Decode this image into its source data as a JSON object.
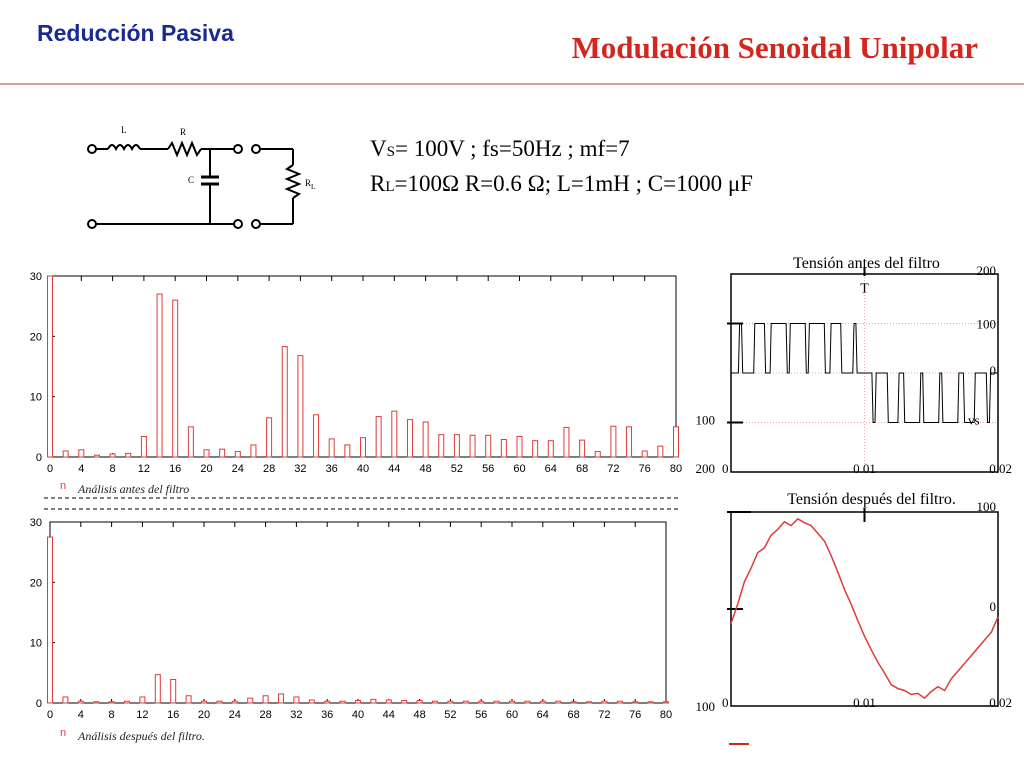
{
  "header": {
    "section_label": "Reducción Pasiva",
    "title": "Modulación Senoidal Unipolar",
    "accent_color": "#d2261e",
    "section_color": "#1b2a8f"
  },
  "circuit": {
    "labels": {
      "L": "L",
      "R": "R",
      "C": "C",
      "RL": "R",
      "RL_sub": "L"
    }
  },
  "params": {
    "line1": {
      "p1_main": "V",
      "p1_sub": "S",
      "p1_rest": "= 100V ;  fs=50Hz ;  mf=7"
    },
    "line2": {
      "p2_main": "R",
      "p2_sub": "L",
      "p2_rest": "=100Ω  R=0.6 Ω;  L=1mH ;  C=1000 μF"
    }
  },
  "chart_data": [
    {
      "type": "bar",
      "title": "Análisis antes del filtro",
      "legend_marker": "n",
      "ylim": [
        0,
        30
      ],
      "yticks": [
        "0",
        "10",
        "20",
        "30"
      ],
      "xlim": [
        0,
        80
      ],
      "xticks": [
        "0",
        "4",
        "8",
        "12",
        "16",
        "20",
        "24",
        "28",
        "32",
        "36",
        "40",
        "44",
        "48",
        "52",
        "56",
        "60",
        "64",
        "68",
        "72",
        "76",
        "80"
      ],
      "bar_color": "#e03a3a",
      "bars": [
        {
          "x": 0,
          "y": 30
        },
        {
          "x": 2,
          "y": 1
        },
        {
          "x": 4,
          "y": 1.2
        },
        {
          "x": 6,
          "y": 0.3
        },
        {
          "x": 8,
          "y": 0.5
        },
        {
          "x": 10,
          "y": 0.6
        },
        {
          "x": 12,
          "y": 3.4
        },
        {
          "x": 14,
          "y": 27
        },
        {
          "x": 16,
          "y": 26
        },
        {
          "x": 18,
          "y": 5
        },
        {
          "x": 20,
          "y": 1.2
        },
        {
          "x": 22,
          "y": 1.3
        },
        {
          "x": 24,
          "y": 0.9
        },
        {
          "x": 26,
          "y": 2
        },
        {
          "x": 28,
          "y": 6.5
        },
        {
          "x": 30,
          "y": 18.3
        },
        {
          "x": 32,
          "y": 16.8
        },
        {
          "x": 34,
          "y": 7
        },
        {
          "x": 36,
          "y": 3
        },
        {
          "x": 38,
          "y": 2
        },
        {
          "x": 40,
          "y": 3.2
        },
        {
          "x": 42,
          "y": 6.7
        },
        {
          "x": 44,
          "y": 7.6
        },
        {
          "x": 46,
          "y": 6.2
        },
        {
          "x": 48,
          "y": 5.8
        },
        {
          "x": 50,
          "y": 3.7
        },
        {
          "x": 52,
          "y": 3.7
        },
        {
          "x": 54,
          "y": 3.6
        },
        {
          "x": 56,
          "y": 3.6
        },
        {
          "x": 58,
          "y": 2.9
        },
        {
          "x": 60,
          "y": 3.4
        },
        {
          "x": 62,
          "y": 2.7
        },
        {
          "x": 64,
          "y": 2.7
        },
        {
          "x": 66,
          "y": 4.9
        },
        {
          "x": 68,
          "y": 2.8
        },
        {
          "x": 70,
          "y": 0.9
        },
        {
          "x": 72,
          "y": 5.1
        },
        {
          "x": 74,
          "y": 5
        },
        {
          "x": 76,
          "y": 1
        },
        {
          "x": 78,
          "y": 1.8
        },
        {
          "x": 80,
          "y": 5
        }
      ]
    },
    {
      "type": "bar",
      "title": "Análisis después del filtro.",
      "legend_marker": "n",
      "ylim": [
        0,
        30
      ],
      "yticks": [
        "0",
        "10",
        "20",
        "30"
      ],
      "xlim": [
        0,
        80
      ],
      "xticks": [
        "0",
        "4",
        "8",
        "12",
        "16",
        "20",
        "24",
        "28",
        "32",
        "36",
        "40",
        "44",
        "48",
        "52",
        "56",
        "60",
        "64",
        "68",
        "72",
        "76",
        "80"
      ],
      "bar_color": "#e03a3a",
      "bars": [
        {
          "x": 0,
          "y": 27.5
        },
        {
          "x": 2,
          "y": 1
        },
        {
          "x": 4,
          "y": 0.3
        },
        {
          "x": 6,
          "y": 0.2
        },
        {
          "x": 8,
          "y": 0.2
        },
        {
          "x": 10,
          "y": 0.3
        },
        {
          "x": 12,
          "y": 1
        },
        {
          "x": 14,
          "y": 4.7
        },
        {
          "x": 16,
          "y": 3.9
        },
        {
          "x": 18,
          "y": 1.2
        },
        {
          "x": 20,
          "y": 0.3
        },
        {
          "x": 22,
          "y": 0.3
        },
        {
          "x": 24,
          "y": 0.3
        },
        {
          "x": 26,
          "y": 0.8
        },
        {
          "x": 28,
          "y": 1.2
        },
        {
          "x": 30,
          "y": 1.5
        },
        {
          "x": 32,
          "y": 1
        },
        {
          "x": 34,
          "y": 0.5
        },
        {
          "x": 36,
          "y": 0.3
        },
        {
          "x": 38,
          "y": 0.3
        },
        {
          "x": 40,
          "y": 0.4
        },
        {
          "x": 42,
          "y": 0.6
        },
        {
          "x": 44,
          "y": 0.5
        },
        {
          "x": 46,
          "y": 0.4
        },
        {
          "x": 48,
          "y": 0.4
        },
        {
          "x": 50,
          "y": 0.3
        },
        {
          "x": 52,
          "y": 0.3
        },
        {
          "x": 54,
          "y": 0.3
        },
        {
          "x": 56,
          "y": 0.3
        },
        {
          "x": 58,
          "y": 0.3
        },
        {
          "x": 60,
          "y": 0.3
        },
        {
          "x": 62,
          "y": 0.3
        },
        {
          "x": 64,
          "y": 0.3
        },
        {
          "x": 66,
          "y": 0.3
        },
        {
          "x": 68,
          "y": 0.2
        },
        {
          "x": 70,
          "y": 0.2
        },
        {
          "x": 72,
          "y": 0.3
        },
        {
          "x": 74,
          "y": 0.3
        },
        {
          "x": 76,
          "y": 0.2
        },
        {
          "x": 78,
          "y": 0.2
        },
        {
          "x": 80,
          "y": 0.2
        }
      ]
    },
    {
      "type": "line",
      "title": "Tensión antes del filtro",
      "series_label": "vs",
      "cursor_label": "T",
      "xlim": [
        0,
        0.02
      ],
      "ylim": [
        -200,
        200
      ],
      "xticks": [
        "0",
        "0.01",
        "0.02"
      ],
      "yticks_right": [
        "200",
        "100",
        "0"
      ],
      "yticks_left": [
        "100",
        "200"
      ],
      "line_color": "#000000",
      "pwm_cycles": 7,
      "duty_ratio": 0.35,
      "pulse_level": 100,
      "mid_ref": 0
    },
    {
      "type": "line",
      "title": "Tensión después del filtro.",
      "xlim": [
        0,
        0.02
      ],
      "ylim": [
        -100,
        100
      ],
      "xticks": [
        "0",
        "0.01",
        "0.02"
      ],
      "yticks_right": [
        "100",
        "0"
      ],
      "yticks_left": [
        "100"
      ],
      "line_color": "#e03a3a",
      "points": [
        [
          0.0,
          -15
        ],
        [
          0.0005,
          5
        ],
        [
          0.001,
          28
        ],
        [
          0.0015,
          42
        ],
        [
          0.002,
          58
        ],
        [
          0.0025,
          63
        ],
        [
          0.003,
          76
        ],
        [
          0.0035,
          82
        ],
        [
          0.004,
          90
        ],
        [
          0.0045,
          86
        ],
        [
          0.005,
          93
        ],
        [
          0.0055,
          89
        ],
        [
          0.006,
          86
        ],
        [
          0.0065,
          78
        ],
        [
          0.007,
          70
        ],
        [
          0.0075,
          55
        ],
        [
          0.008,
          38
        ],
        [
          0.0085,
          20
        ],
        [
          0.009,
          5
        ],
        [
          0.0095,
          -12
        ],
        [
          0.01,
          -28
        ],
        [
          0.0105,
          -42
        ],
        [
          0.011,
          -55
        ],
        [
          0.0115,
          -66
        ],
        [
          0.012,
          -78
        ],
        [
          0.0125,
          -82
        ],
        [
          0.013,
          -84
        ],
        [
          0.0135,
          -88
        ],
        [
          0.014,
          -87
        ],
        [
          0.0145,
          -92
        ],
        [
          0.015,
          -85
        ],
        [
          0.0155,
          -80
        ],
        [
          0.016,
          -84
        ],
        [
          0.0165,
          -72
        ],
        [
          0.017,
          -64
        ],
        [
          0.0175,
          -56
        ],
        [
          0.018,
          -48
        ],
        [
          0.0185,
          -40
        ],
        [
          0.019,
          -32
        ],
        [
          0.0195,
          -24
        ],
        [
          0.02,
          -8
        ]
      ]
    }
  ]
}
